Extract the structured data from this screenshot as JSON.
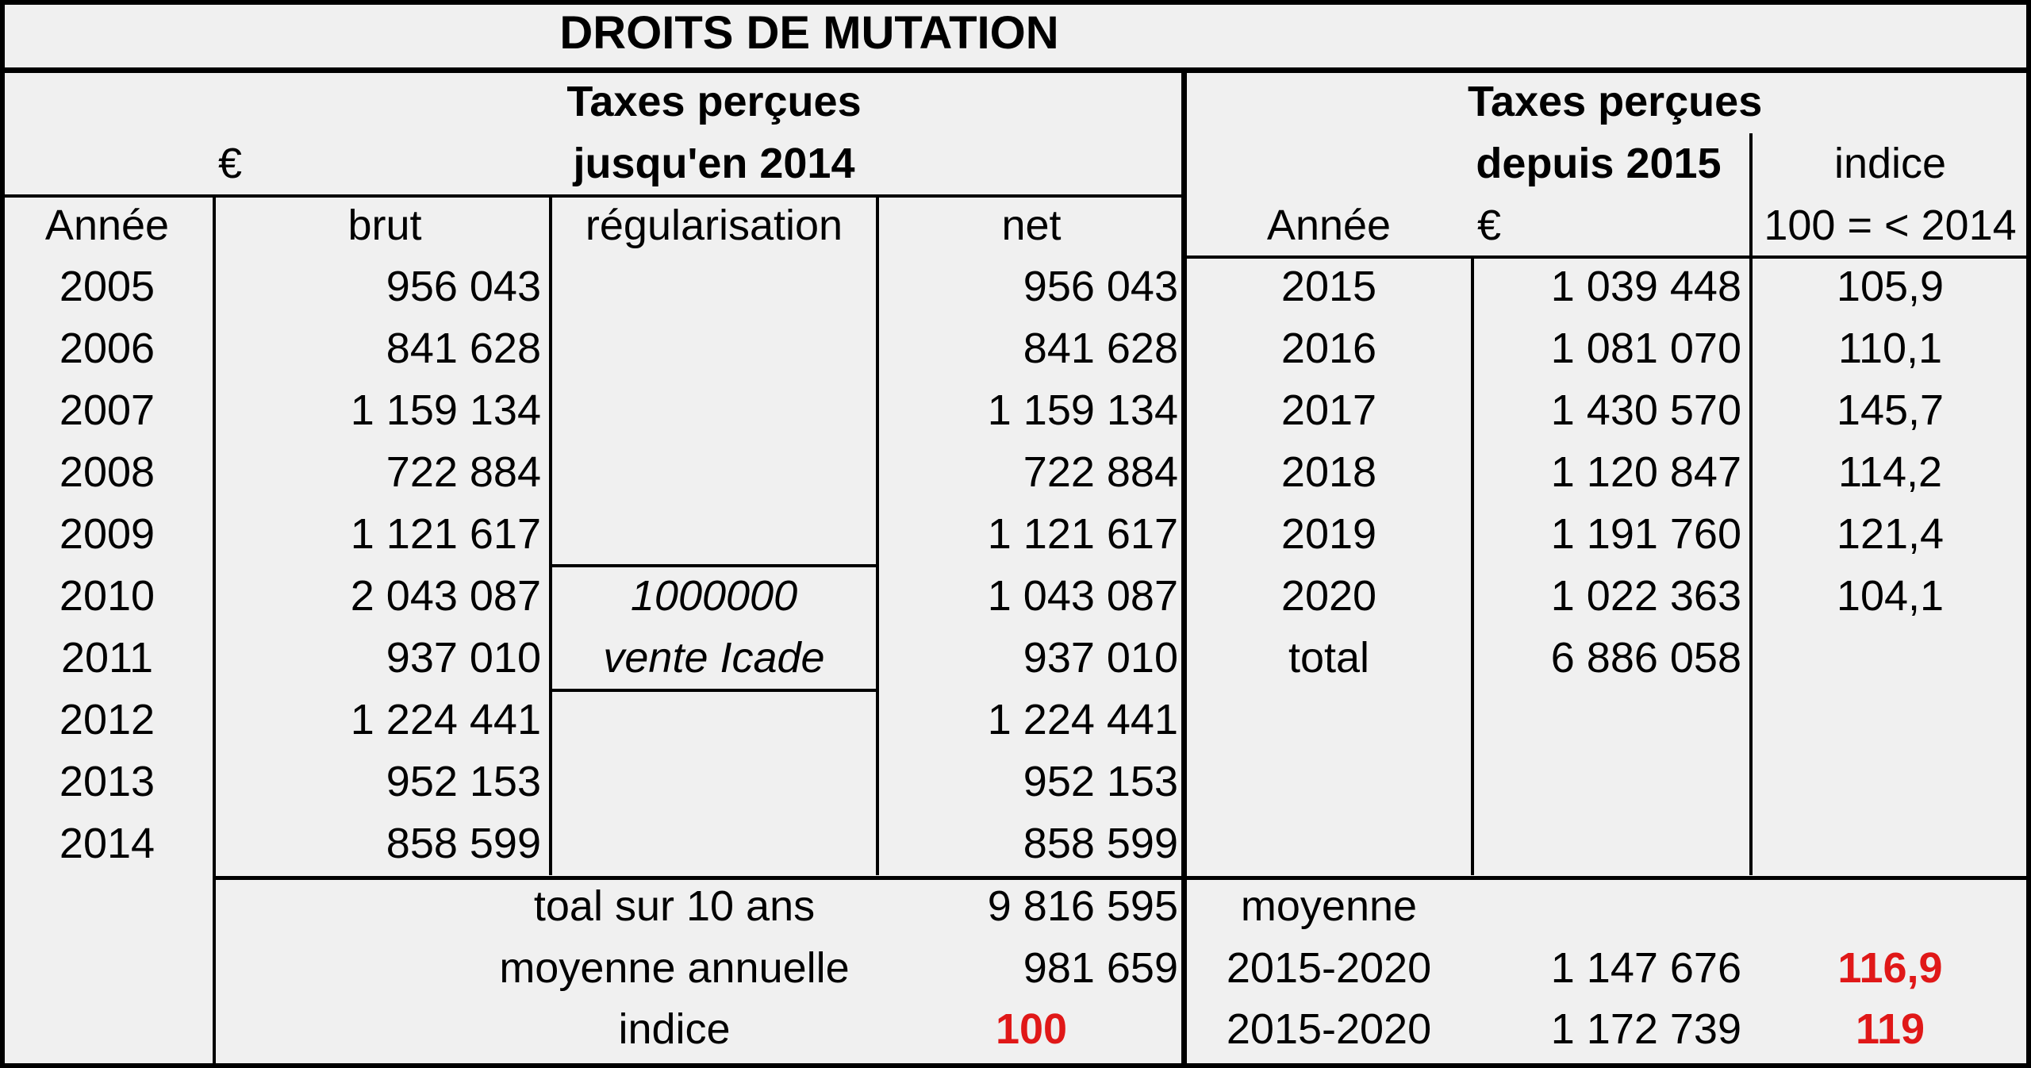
{
  "title": "DROITS DE MUTATION",
  "left": {
    "header_line1": "Taxes perçues",
    "header_line2": "jusqu'en 2014",
    "currency": "€",
    "columns": [
      "Année",
      "brut",
      "régularisation",
      "net"
    ],
    "rows": [
      {
        "year": "2005",
        "brut": "956 043",
        "net": "956 043"
      },
      {
        "year": "2006",
        "brut": "841 628",
        "net": "841 628"
      },
      {
        "year": "2007",
        "brut": "1 159 134",
        "net": "1 159 134"
      },
      {
        "year": "2008",
        "brut": "722 884",
        "net": "722 884"
      },
      {
        "year": "2009",
        "brut": "1 121 617",
        "net": "1 121 617"
      },
      {
        "year": "2010",
        "brut": "2 043 087",
        "net": "1 043 087"
      },
      {
        "year": "2011",
        "brut": "937 010",
        "net": "937 010"
      },
      {
        "year": "2012",
        "brut": "1 224 441",
        "net": "1 224 441"
      },
      {
        "year": "2013",
        "brut": "952 153",
        "net": "952 153"
      },
      {
        "year": "2014",
        "brut": "858 599",
        "net": "858 599"
      }
    ],
    "regularisation_amount": "1000000",
    "regularisation_note": "vente Icade",
    "total_label": "toal sur 10 ans",
    "total_value": "9 816 595",
    "average_label": "moyenne annuelle",
    "average_value": "981 659",
    "index_label": "indice",
    "index_value": "100"
  },
  "right": {
    "header_line1": "Taxes perçues",
    "header_line2": "depuis 2015",
    "index_header_line1": "indice",
    "index_header_line2": "100 = < 2014",
    "col_year": "Année",
    "col_currency": "€",
    "rows": [
      {
        "year": "2015",
        "amount": "1 039 448",
        "index": "105,9"
      },
      {
        "year": "2016",
        "amount": "1 081 070",
        "index": "110,1"
      },
      {
        "year": "2017",
        "amount": "1 430 570",
        "index": "145,7"
      },
      {
        "year": "2018",
        "amount": "1 120 847",
        "index": "114,2"
      },
      {
        "year": "2019",
        "amount": "1 191 760",
        "index": "121,4"
      },
      {
        "year": "2020",
        "amount": "1 022 363",
        "index": "104,1"
      }
    ],
    "total_label": "total",
    "total_value": "6 886 058",
    "average_label": "moyenne",
    "summary": [
      {
        "period": "2015-2020",
        "value": "1 147 676",
        "index": "116,9"
      },
      {
        "period": "2015-2020",
        "value": "1 172 739",
        "index": "119"
      }
    ]
  },
  "colors": {
    "highlight": "#e01818",
    "background": "#f0f0f0",
    "border": "#000000"
  }
}
